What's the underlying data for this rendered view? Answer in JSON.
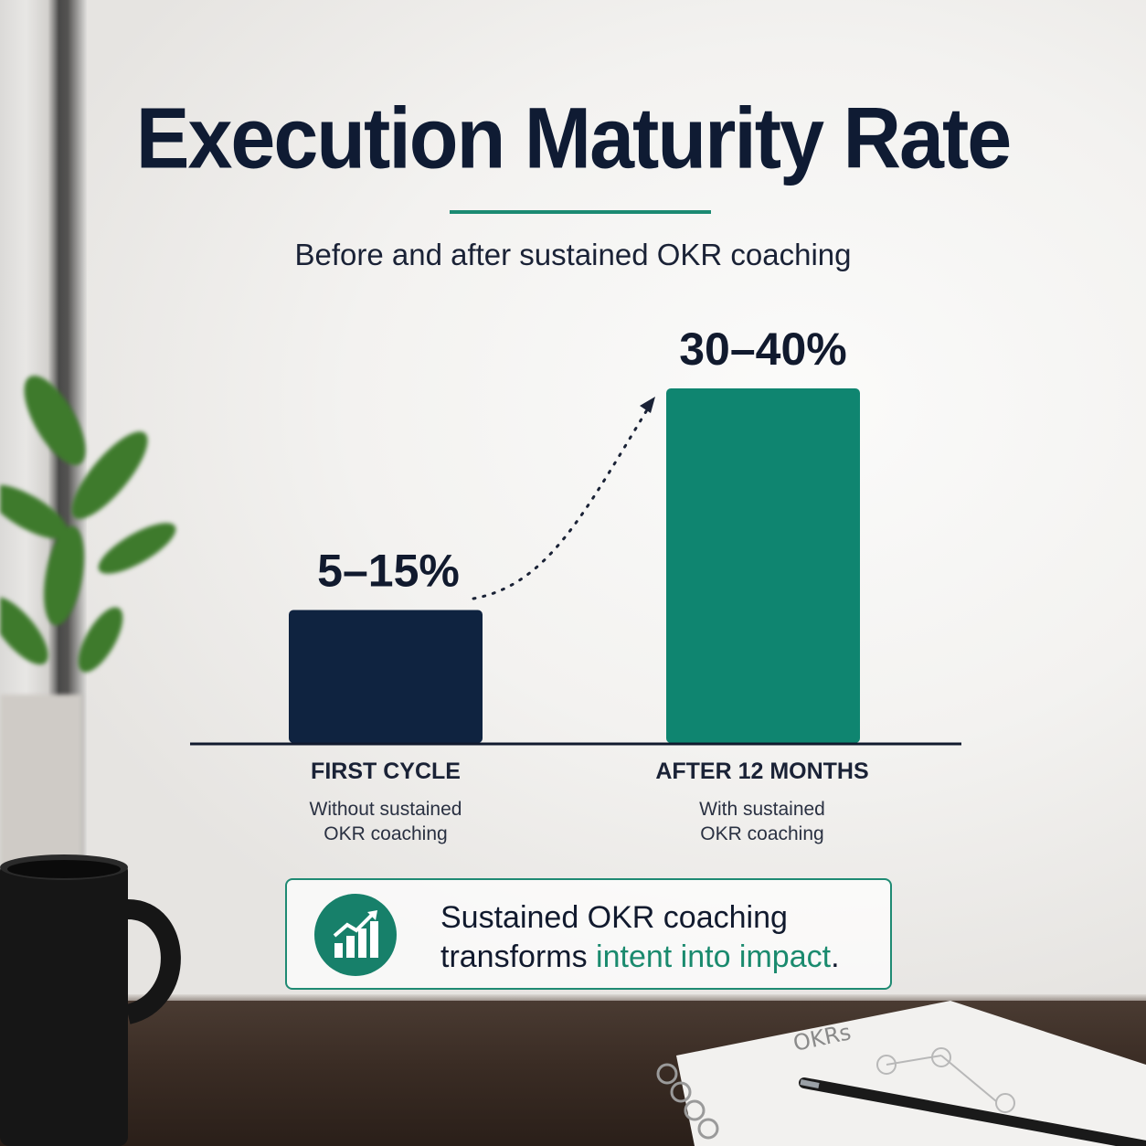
{
  "title": "Execution Maturity Rate",
  "subtitle": "Before and after sustained OKR coaching",
  "colors": {
    "navy": "#0f2340",
    "teal": "#0f8570",
    "accent": "#1a8a6e"
  },
  "chart_data": {
    "type": "bar",
    "title": "Execution Maturity Rate",
    "subtitle": "Before and after sustained OKR coaching",
    "categories": [
      "FIRST CYCLE",
      "AFTER 12 MONTHS"
    ],
    "category_descriptions": [
      [
        "Without sustained",
        "OKR coaching"
      ],
      [
        "With sustained",
        "OKR coaching"
      ]
    ],
    "ranges": [
      [
        5,
        15
      ],
      [
        30,
        40
      ]
    ],
    "data_labels": [
      "5–15%",
      "30–40%"
    ],
    "bar_colors": [
      "#0f2340",
      "#0f8570"
    ],
    "unit": "%",
    "grid": false,
    "legend": "none",
    "annotation": "dotted arrow from first bar to second bar"
  },
  "callout": {
    "icon": "growth-chart-icon",
    "line1": "Sustained OKR coaching",
    "line2_prefix": "transforms ",
    "line2_accent": "intent into impact",
    "line2_suffix": "."
  },
  "scene": {
    "notebook_text": "OKRs"
  }
}
